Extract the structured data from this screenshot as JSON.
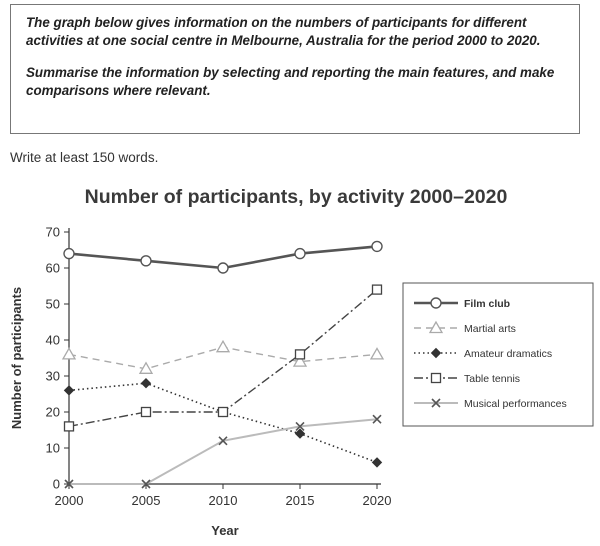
{
  "task": {
    "paragraph1": "The graph below gives information on the numbers of participants for different activities at one social centre in Melbourne, Australia for the period 2000 to 2020.",
    "paragraph2": "Summarise the information by selecting and reporting the main features, and make comparisons where relevant."
  },
  "instruction": "Write at least 150 words.",
  "chart_data": {
    "type": "line",
    "title": "Number of participants, by activity 2000–2020",
    "xlabel": "Year",
    "ylabel": "Number of participants",
    "x": [
      2000,
      2005,
      2010,
      2015,
      2020
    ],
    "xlim": [
      2000,
      2020
    ],
    "ylim": [
      0,
      70
    ],
    "yticks": [
      0,
      10,
      20,
      30,
      40,
      50,
      60,
      70
    ],
    "grid": false,
    "legend_position": "right",
    "series": [
      {
        "name": "Film club",
        "values": [
          64,
          62,
          60,
          64,
          66
        ],
        "marker": "circle",
        "line": "solid-thick",
        "color": "#555555"
      },
      {
        "name": "Martial arts",
        "values": [
          36,
          32,
          38,
          34,
          36
        ],
        "marker": "triangle",
        "line": "dashed",
        "color": "#aaaaaa"
      },
      {
        "name": "Amateur dramatics",
        "values": [
          26,
          28,
          20,
          14,
          6
        ],
        "marker": "diamond",
        "line": "dotted",
        "color": "#333333"
      },
      {
        "name": "Table tennis",
        "values": [
          16,
          20,
          20,
          36,
          54
        ],
        "marker": "square",
        "line": "dashdot",
        "color": "#444444"
      },
      {
        "name": "Musical performances",
        "values": [
          0,
          0,
          12,
          16,
          18
        ],
        "marker": "x",
        "line": "solid",
        "color": "#bbbbbb"
      }
    ]
  }
}
